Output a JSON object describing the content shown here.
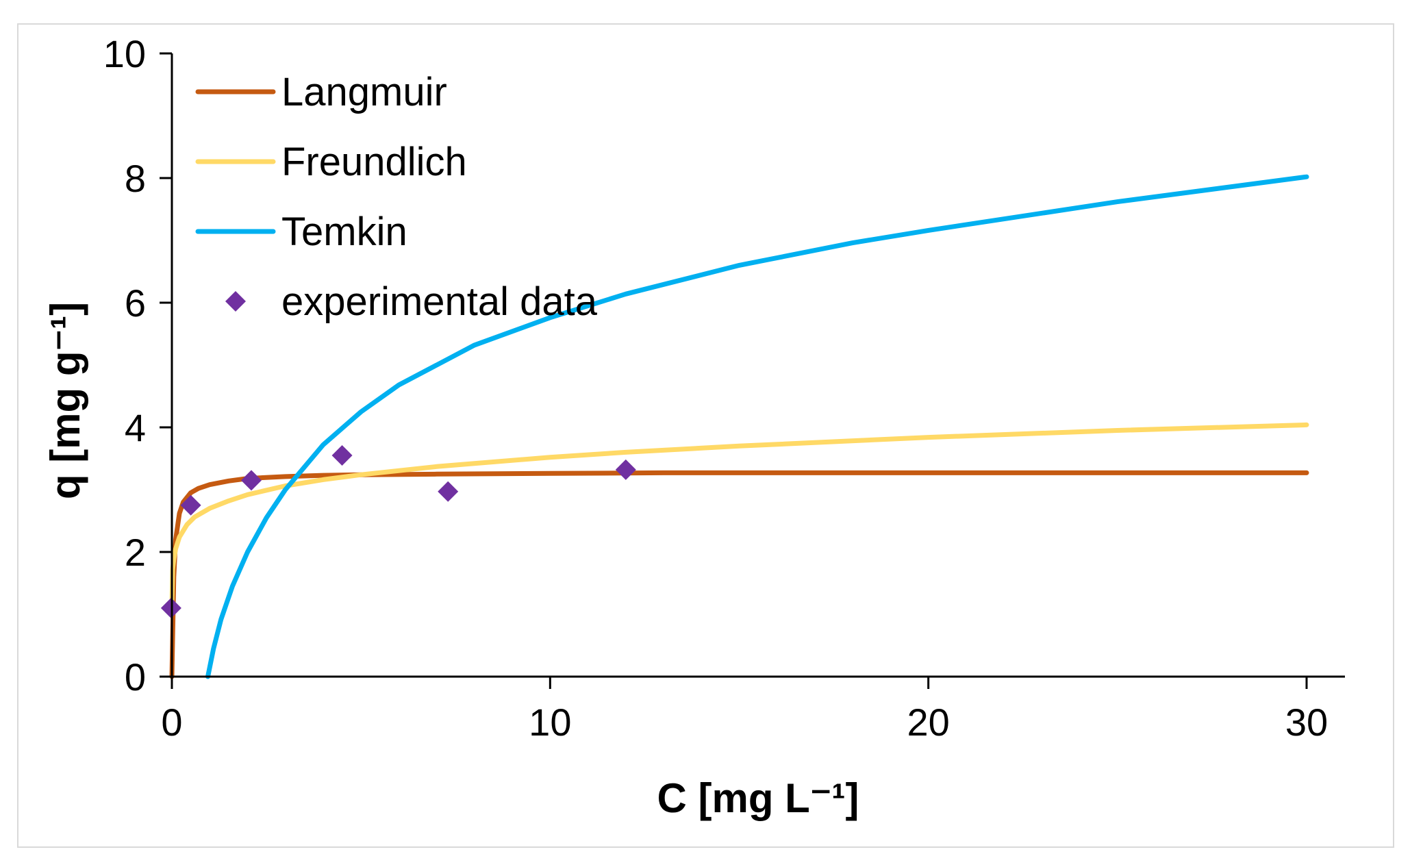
{
  "chart_data": {
    "type": "line",
    "title": "",
    "xlabel": "C [mg L⁻¹]",
    "ylabel": "q [mg g⁻¹]",
    "xlim": [
      0,
      30
    ],
    "ylim": [
      0,
      10
    ],
    "x_ticks": [
      0,
      10,
      20,
      30
    ],
    "y_ticks": [
      0,
      2,
      4,
      6,
      8,
      10
    ],
    "x_tick_labels": [
      "0",
      "10",
      "20",
      "30"
    ],
    "y_tick_labels": [
      "0",
      "2",
      "4",
      "6",
      "8",
      "10"
    ],
    "grid": false,
    "legend_position": "top-left",
    "series": [
      {
        "name": "Langmuir",
        "kind": "line",
        "color": "#c55a11",
        "x": [
          0,
          0.05,
          0.1,
          0.2,
          0.3,
          0.5,
          0.7,
          1,
          1.5,
          2,
          3,
          4,
          5,
          7,
          10,
          13,
          16,
          20,
          25,
          30
        ],
        "y": [
          0,
          1.6,
          2.2,
          2.62,
          2.8,
          2.95,
          3.02,
          3.08,
          3.14,
          3.18,
          3.21,
          3.23,
          3.24,
          3.25,
          3.26,
          3.27,
          3.27,
          3.27,
          3.27,
          3.27
        ]
      },
      {
        "name": "Freundlich",
        "kind": "line",
        "color": "#ffd966",
        "x": [
          0,
          0.02,
          0.05,
          0.1,
          0.2,
          0.4,
          0.6,
          1,
          1.5,
          2,
          3,
          4,
          5,
          7,
          10,
          12,
          15,
          20,
          25,
          30
        ],
        "y": [
          1.15,
          1.72,
          1.88,
          2.05,
          2.24,
          2.44,
          2.56,
          2.7,
          2.82,
          2.92,
          3.06,
          3.16,
          3.24,
          3.37,
          3.52,
          3.6,
          3.7,
          3.84,
          3.95,
          4.04
        ]
      },
      {
        "name": "Temkin",
        "kind": "line",
        "color": "#00b0f0",
        "x": [
          0.95,
          1.1,
          1.3,
          1.6,
          2,
          2.5,
          3,
          4,
          5,
          6,
          8,
          10,
          12,
          15,
          18,
          20,
          25,
          30
        ],
        "y": [
          0,
          0.45,
          0.92,
          1.45,
          2.0,
          2.55,
          3.0,
          3.72,
          4.25,
          4.68,
          5.32,
          5.76,
          6.14,
          6.6,
          6.96,
          7.16,
          7.62,
          8.02
        ]
      },
      {
        "name": "experimental data",
        "kind": "scatter",
        "color": "#7030a0",
        "x": [
          -0.02,
          0.5,
          2.1,
          4.5,
          7.3,
          12
        ],
        "y": [
          1.1,
          2.75,
          3.15,
          3.55,
          2.97,
          3.32
        ]
      }
    ]
  }
}
